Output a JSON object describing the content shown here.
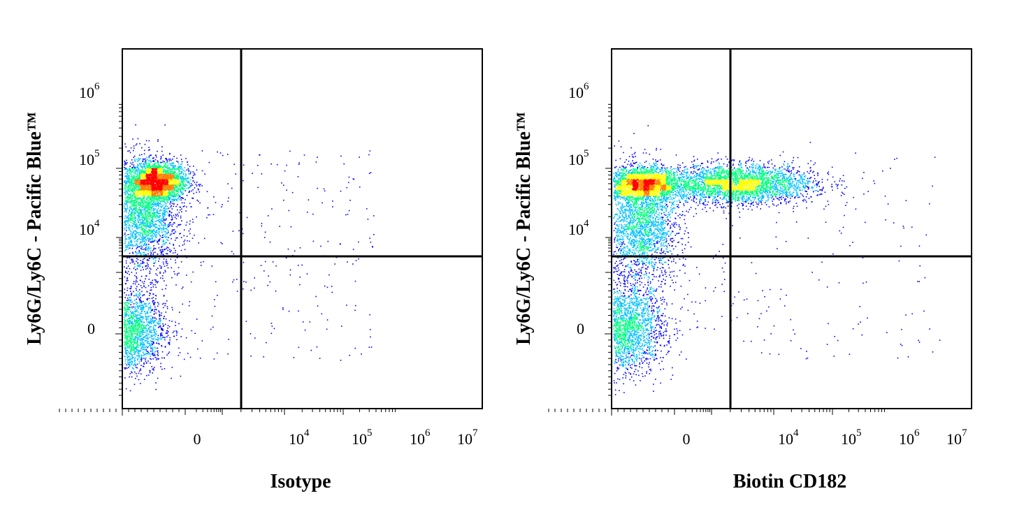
{
  "chart_data": [
    {
      "type": "scatter",
      "subtype": "flow-cytometry-density-dot-plot",
      "xlabel": "Isotype",
      "ylabel": "Ly6G/Ly6C - Pacific Blue™",
      "x_scale": "biexponential",
      "y_scale": "biexponential",
      "x_ticks": [
        "0",
        "10^4",
        "10^5",
        "10^6",
        "10^7"
      ],
      "y_ticks": [
        "0",
        "10^4",
        "10^5",
        "10^6"
      ],
      "quadrant_gate": {
        "x": 2000,
        "y": 3000
      },
      "color_scale": [
        "#0000ff",
        "#00c0ff",
        "#00ff80",
        "#ffff00",
        "#ff8000",
        "#ff0000"
      ],
      "populations": [
        {
          "x_center": 500,
          "y_center": 65000,
          "relative_density": "high"
        },
        {
          "x_center": 300,
          "y_center": 20000,
          "relative_density": "medium"
        },
        {
          "x_center": 100,
          "y_center": 0,
          "relative_density": "medium"
        }
      ]
    },
    {
      "type": "scatter",
      "subtype": "flow-cytometry-density-dot-plot",
      "xlabel": "Biotin CD182",
      "ylabel": "Ly6G/Ly6C - Pacific Blue™",
      "x_scale": "biexponential",
      "y_scale": "biexponential",
      "x_ticks": [
        "0",
        "10^4",
        "10^5",
        "10^6",
        "10^7"
      ],
      "y_ticks": [
        "0",
        "10^4",
        "10^5",
        "10^6"
      ],
      "quadrant_gate": {
        "x": 2000,
        "y": 3000
      },
      "color_scale": [
        "#0000ff",
        "#00c0ff",
        "#00ff80",
        "#ffff00",
        "#ff8000",
        "#ff0000"
      ],
      "populations": [
        {
          "x_center": 400,
          "y_center": 60000,
          "relative_density": "high"
        },
        {
          "x_center": 25000,
          "y_center": 60000,
          "relative_density": "high"
        },
        {
          "x_center": 400,
          "y_center": 15000,
          "relative_density": "medium"
        },
        {
          "x_center": 100,
          "y_center": 0,
          "relative_density": "medium"
        }
      ]
    }
  ],
  "tick_labels": {
    "zero": "0",
    "base": "10",
    "exp4": "4",
    "exp5": "5",
    "exp6": "6",
    "exp7": "7"
  }
}
